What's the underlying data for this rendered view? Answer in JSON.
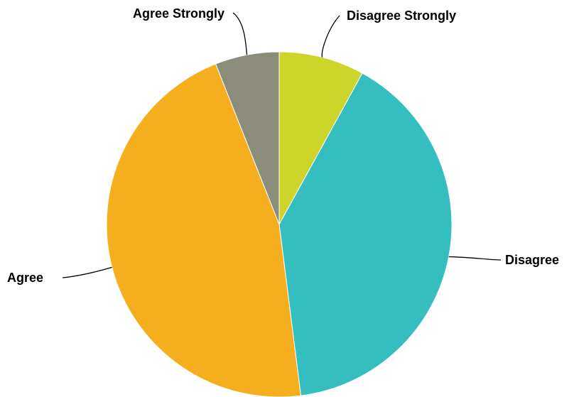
{
  "chart_data": {
    "type": "pie",
    "title": "",
    "slices": [
      {
        "label": "Disagree Strongly",
        "value": 8,
        "color": "#CDD42A"
      },
      {
        "label": "Disagree",
        "value": 40,
        "color": "#35BEC0"
      },
      {
        "label": "Agree",
        "value": 46,
        "color": "#F5AF1E"
      },
      {
        "label": "Agree Strongly",
        "value": 6,
        "color": "#8C8C7A"
      }
    ],
    "start_angle": "12 o'clock",
    "direction": "clockwise",
    "legend": "none"
  }
}
